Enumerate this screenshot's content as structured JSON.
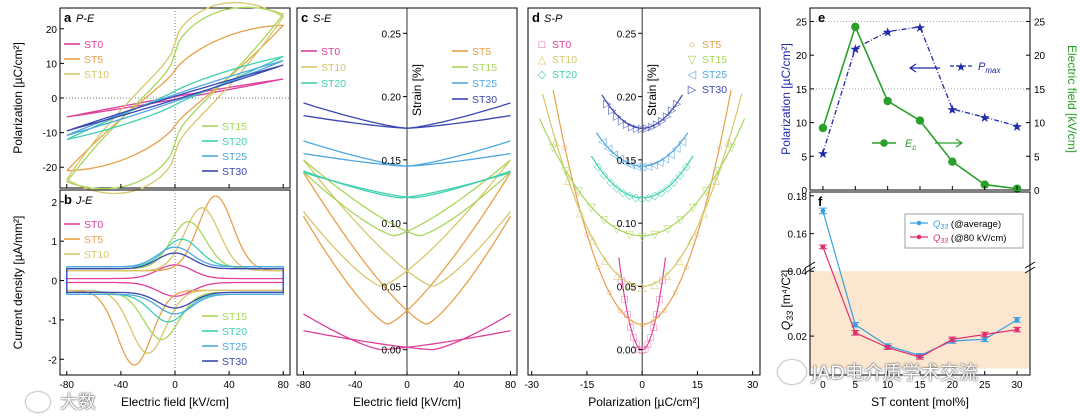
{
  "colors": {
    "ST0": "#e0409a",
    "ST5": "#e8a04a",
    "ST10": "#d6c86a",
    "ST15": "#a8d65a",
    "ST20": "#40d0b0",
    "ST25": "#50a8e0",
    "ST30": "#3a48b0",
    "navy": "#1f2aa8",
    "green": "#2aa02a",
    "q_avg": "#3aa0e0",
    "q_80": "#e03070",
    "band": "#fbe6cf"
  },
  "watermark": {
    "right_text": "JAD电介质学术交流",
    "left_text": "大数"
  },
  "chart_data": [
    {
      "panel": "a",
      "label": "P-E",
      "type": "line",
      "xlabel": "Electric field [kV/cm]",
      "ylabel": "Polarization [µC/cm²]",
      "xlim": [
        -85,
        85
      ],
      "ylim": [
        -26,
        26
      ],
      "xticks": [
        -80,
        -40,
        0,
        40,
        80
      ],
      "yticks": [
        -20,
        -10,
        0,
        10,
        20
      ],
      "legend_top": [
        "ST0",
        "ST5",
        "ST10"
      ],
      "legend_bottom": [
        "ST15",
        "ST20",
        "ST25",
        "ST30"
      ],
      "series": [
        {
          "name": "ST0",
          "pmax": 5.5,
          "pr": 0.4,
          "shape": 1.0
        },
        {
          "name": "ST5",
          "pmax": 21.0,
          "pr": 8.0,
          "shape": 0.8
        },
        {
          "name": "ST10",
          "pmax": 23.5,
          "pr": 16.0,
          "shape": 0.6
        },
        {
          "name": "ST15",
          "pmax": 24.2,
          "pr": 13.0,
          "shape": 0.6
        },
        {
          "name": "ST20",
          "pmax": 12.0,
          "pr": 2.0,
          "shape": 0.9
        },
        {
          "name": "ST25",
          "pmax": 10.8,
          "pr": 1.0,
          "shape": 1.0
        },
        {
          "name": "ST30",
          "pmax": 9.5,
          "pr": 0.5,
          "shape": 1.0
        }
      ]
    },
    {
      "panel": "b",
      "label": "J-E",
      "type": "line",
      "xlabel": "Electric field [kV/cm]",
      "ylabel": "Current density [µA/mm²]",
      "xlim": [
        -85,
        85
      ],
      "ylim": [
        -2.4,
        2.3
      ],
      "xticks": [
        -80,
        -40,
        0,
        40,
        80
      ],
      "yticks": [
        -2,
        -1,
        0,
        1,
        2
      ],
      "legend_top": [
        "ST0",
        "ST5",
        "ST10"
      ],
      "legend_bottom": [
        "ST15",
        "ST20",
        "ST25",
        "ST30"
      ],
      "series": [
        {
          "name": "ST0",
          "base": 0.05,
          "peak": 0.35,
          "pos": 0
        },
        {
          "name": "ST5",
          "base": 0.25,
          "peak": 1.9,
          "pos": 30
        },
        {
          "name": "ST10",
          "base": 0.25,
          "peak": 1.6,
          "pos": 20
        },
        {
          "name": "ST15",
          "base": 0.3,
          "peak": 1.2,
          "pos": 10
        },
        {
          "name": "ST20",
          "base": 0.35,
          "peak": 0.7,
          "pos": 5
        },
        {
          "name": "ST25",
          "base": 0.35,
          "peak": 0.5,
          "pos": 0
        },
        {
          "name": "ST30",
          "base": 0.3,
          "peak": 0.4,
          "pos": 0
        }
      ]
    },
    {
      "panel": "c",
      "label": "S-E",
      "type": "line",
      "xlabel": "Electric field [kV/cm]",
      "ylabel": "Strain [%]",
      "xlim": [
        -85,
        85
      ],
      "ylim": [
        -0.02,
        0.27
      ],
      "xticks": [
        -80,
        -40,
        0,
        40,
        80
      ],
      "ytick_labels": [
        "0.00",
        "0.05",
        "0.10",
        "0.15",
        "0.20",
        "0.25"
      ],
      "legend_left": [
        "ST0",
        "ST10",
        "ST20"
      ],
      "legend_right": [
        "ST5",
        "ST15",
        "ST25",
        "ST30"
      ],
      "series": [
        {
          "name": "ST0",
          "s0": 0.0,
          "smax": 0.055,
          "sneg": 0.015,
          "ec": 20
        },
        {
          "name": "ST5",
          "s0": 0.02,
          "smax": 0.16,
          "sneg": 0.14,
          "ec": 15
        },
        {
          "name": "ST10",
          "s0": 0.05,
          "smax": 0.165,
          "sneg": 0.15,
          "ec": 20
        },
        {
          "name": "ST15",
          "s0": 0.09,
          "smax": 0.16,
          "sneg": 0.15,
          "ec": 10
        },
        {
          "name": "ST20",
          "s0": 0.12,
          "smax": 0.145,
          "sneg": 0.14,
          "ec": 5
        },
        {
          "name": "ST25",
          "s0": 0.145,
          "smax": 0.165,
          "sneg": 0.155,
          "ec": 0
        },
        {
          "name": "ST30",
          "s0": 0.175,
          "smax": 0.195,
          "sneg": 0.185,
          "ec": 0
        }
      ]
    },
    {
      "panel": "d",
      "label": "S-P",
      "type": "scatter",
      "xlabel": "Polarization [µC/cm²]",
      "ylabel": "Strain [%]",
      "xlim": [
        -31,
        32
      ],
      "ylim": [
        -0.02,
        0.27
      ],
      "xticks": [
        -30,
        -15,
        0,
        15,
        30
      ],
      "ytick_labels": [
        "0.00",
        "0.05",
        "0.10",
        "0.15",
        "0.20",
        "0.25"
      ],
      "legend_left": [
        "ST0",
        "ST10",
        "ST20"
      ],
      "legend_right": [
        "ST5",
        "ST15",
        "ST25",
        "ST30"
      ],
      "markers": {
        "ST0": "□",
        "ST5": "○",
        "ST10": "△",
        "ST15": "▽",
        "ST20": "◇",
        "ST25": "◁",
        "ST30": "▷"
      },
      "series": [
        {
          "name": "ST0",
          "pmax": 5.5,
          "s0": 0.0,
          "smax": 0.055
        },
        {
          "name": "ST5",
          "pmax": 21.0,
          "s0": 0.02,
          "smax": 0.16
        },
        {
          "name": "ST10",
          "pmax": 23.5,
          "s0": 0.05,
          "smax": 0.165
        },
        {
          "name": "ST15",
          "pmax": 24.2,
          "s0": 0.09,
          "smax": 0.16
        },
        {
          "name": "ST20",
          "pmax": 12.0,
          "s0": 0.12,
          "smax": 0.145
        },
        {
          "name": "ST25",
          "pmax": 10.8,
          "s0": 0.145,
          "smax": 0.165
        },
        {
          "name": "ST30",
          "pmax": 9.5,
          "s0": 0.175,
          "smax": 0.195
        }
      ]
    },
    {
      "panel": "e",
      "type": "line",
      "xlim": [
        -2,
        32
      ],
      "xticks": [
        0,
        5,
        10,
        15,
        20,
        25,
        30
      ],
      "ylabel_left": "Polarization [µC/cm²]",
      "ylabel_right": "Electric field [kV/cm]",
      "ylim_left": [
        0,
        27
      ],
      "yticks_left": [
        0,
        5,
        10,
        15,
        20,
        25
      ],
      "ylim_right": [
        0,
        27
      ],
      "yticks_right": [
        0,
        5,
        10,
        15,
        20,
        25
      ],
      "series": [
        {
          "name": "P",
          "sub": "max",
          "axis": "left",
          "color": "#1f2aa8",
          "x": [
            0,
            5,
            10,
            15,
            20,
            25,
            30
          ],
          "y": [
            5.5,
            21.0,
            23.5,
            24.2,
            12.0,
            10.8,
            9.5
          ]
        },
        {
          "name": "E",
          "sub": "c",
          "axis": "right",
          "color": "#2aa02a",
          "x": [
            0,
            5,
            10,
            15,
            20,
            25,
            30
          ],
          "y": [
            9.2,
            24.2,
            13.2,
            10.3,
            4.2,
            0.8,
            0.2
          ]
        }
      ]
    },
    {
      "panel": "f",
      "type": "line",
      "xlabel": "ST content [mol%]",
      "ylabel_main": "Q",
      "ylabel_sub": "33",
      "ylabel_unit": " [m⁴/C²]",
      "xlim": [
        -2,
        32
      ],
      "xticks": [
        0,
        5,
        10,
        15,
        20,
        25,
        30
      ],
      "ylim_upper": [
        0.145,
        0.182
      ],
      "yticks_upper": [
        0.16,
        0.18
      ],
      "ylim_lower": [
        0.008,
        0.041
      ],
      "yticks_lower": [
        0.02,
        0.04
      ],
      "ytick_labels_upper": [
        "0.16",
        "0.18"
      ],
      "ytick_labels_lower": [
        "0.02",
        "0.04"
      ],
      "series": [
        {
          "name": "Q",
          "sub": "33",
          "note": "(@average)",
          "color": "#3aa0e0",
          "x": [
            0,
            5,
            10,
            15,
            20,
            25,
            30
          ],
          "y": [
            0.172,
            0.0235,
            0.017,
            0.014,
            0.0185,
            0.019,
            0.025
          ],
          "err": [
            0.0015,
            0.0007,
            0.0006,
            0.0006,
            0.0007,
            0.0007,
            0.0007
          ]
        },
        {
          "name": "Q",
          "sub": "33",
          "note": "(@80 kV/cm)",
          "color": "#e03070",
          "x": [
            0,
            5,
            10,
            15,
            20,
            25,
            30
          ],
          "y": [
            0.153,
            0.021,
            0.0165,
            0.0135,
            0.019,
            0.0205,
            0.022
          ],
          "err": [
            0.001,
            0.0007,
            0.0006,
            0.0006,
            0.0007,
            0.0007,
            0.0007
          ]
        }
      ]
    }
  ]
}
